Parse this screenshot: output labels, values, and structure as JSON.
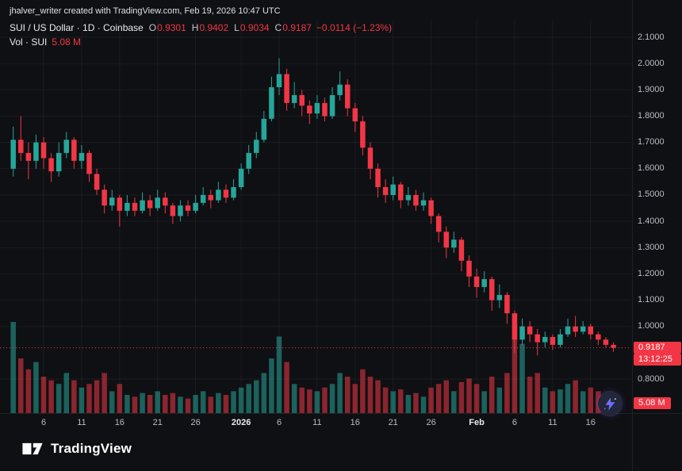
{
  "attribution": "jhalver_writer created with TradingView.com, Feb 19, 2026 10:47 UTC",
  "legend": {
    "title": "SUI / US Dollar · 1D · Coinbase",
    "o_label": "O",
    "o": "0.9301",
    "h_label": "H",
    "h": "0.9402",
    "l_label": "L",
    "l": "0.9034",
    "c_label": "C",
    "c": "0.9187",
    "change": "−0.0114 (−1.23%)",
    "volume_label": "Vol · SUI",
    "volume_value": "5.08 M"
  },
  "price_axis": {
    "labels": [
      "2.1000",
      "2.0000",
      "1.9000",
      "1.8000",
      "1.7000",
      "1.6000",
      "1.5000",
      "1.4000",
      "1.3000",
      "1.2000",
      "1.1000",
      "1.0000",
      "0.8000"
    ],
    "last_price_badge": "0.9187",
    "countdown_badge": "13:12:25",
    "volume_badge": "5.08 M"
  },
  "time_axis": [
    {
      "label": "6",
      "day": 4
    },
    {
      "label": "11",
      "day": 9
    },
    {
      "label": "16",
      "day": 14
    },
    {
      "label": "21",
      "day": 19
    },
    {
      "label": "26",
      "day": 24
    },
    {
      "label": "2026",
      "day": 30,
      "major": true
    },
    {
      "label": "6",
      "day": 35
    },
    {
      "label": "11",
      "day": 40
    },
    {
      "label": "16",
      "day": 45
    },
    {
      "label": "21",
      "day": 50
    },
    {
      "label": "26",
      "day": 55
    },
    {
      "label": "Feb",
      "day": 61,
      "major": true
    },
    {
      "label": "6",
      "day": 66
    },
    {
      "label": "11",
      "day": 71
    },
    {
      "label": "16",
      "day": 76
    }
  ],
  "footer": {
    "logo_text": "TradingView"
  },
  "colors": {
    "background": "#0f1013",
    "up": "#26a69a",
    "down": "#f23645",
    "up_volume": "rgba(38,166,154,0.55)",
    "down_volume": "rgba(242,54,69,0.55)",
    "badge": "#f23645",
    "axis_text": "#b8bcc5",
    "grid": "rgba(255,255,255,0.05)"
  },
  "chart_data": {
    "type": "candlestick",
    "title": "SUI / US Dollar",
    "exchange": "Coinbase",
    "interval": "1D",
    "ylim": [
      0.78,
      2.13
    ],
    "last_price": 0.9187,
    "last_change": -0.0114,
    "last_change_pct": -1.23,
    "volume_unit": "M",
    "last_volume": 5.08,
    "candles": [
      [
        1.6,
        1.76,
        1.57,
        1.71
      ],
      [
        1.71,
        1.8,
        1.63,
        1.66
      ],
      [
        1.66,
        1.7,
        1.56,
        1.63
      ],
      [
        1.63,
        1.73,
        1.6,
        1.7
      ],
      [
        1.7,
        1.72,
        1.6,
        1.64
      ],
      [
        1.64,
        1.66,
        1.55,
        1.59
      ],
      [
        1.59,
        1.7,
        1.57,
        1.66
      ],
      [
        1.66,
        1.74,
        1.64,
        1.71
      ],
      [
        1.71,
        1.72,
        1.6,
        1.63
      ],
      [
        1.63,
        1.69,
        1.6,
        1.66
      ],
      [
        1.66,
        1.67,
        1.55,
        1.58
      ],
      [
        1.58,
        1.6,
        1.5,
        1.52
      ],
      [
        1.52,
        1.54,
        1.43,
        1.46
      ],
      [
        1.46,
        1.52,
        1.44,
        1.49
      ],
      [
        1.49,
        1.5,
        1.38,
        1.44
      ],
      [
        1.44,
        1.5,
        1.42,
        1.47
      ],
      [
        1.47,
        1.49,
        1.42,
        1.44
      ],
      [
        1.44,
        1.51,
        1.43,
        1.48
      ],
      [
        1.48,
        1.5,
        1.42,
        1.45
      ],
      [
        1.45,
        1.52,
        1.44,
        1.49
      ],
      [
        1.49,
        1.51,
        1.43,
        1.46
      ],
      [
        1.46,
        1.47,
        1.39,
        1.42
      ],
      [
        1.42,
        1.48,
        1.4,
        1.46
      ],
      [
        1.46,
        1.48,
        1.42,
        1.44
      ],
      [
        1.44,
        1.5,
        1.43,
        1.47
      ],
      [
        1.47,
        1.53,
        1.46,
        1.5
      ],
      [
        1.5,
        1.52,
        1.45,
        1.48
      ],
      [
        1.48,
        1.55,
        1.47,
        1.52
      ],
      [
        1.52,
        1.54,
        1.47,
        1.49
      ],
      [
        1.49,
        1.56,
        1.48,
        1.53
      ],
      [
        1.53,
        1.62,
        1.52,
        1.6
      ],
      [
        1.6,
        1.69,
        1.58,
        1.66
      ],
      [
        1.66,
        1.74,
        1.64,
        1.71
      ],
      [
        1.71,
        1.82,
        1.7,
        1.79
      ],
      [
        1.79,
        1.95,
        1.78,
        1.91
      ],
      [
        1.91,
        2.02,
        1.88,
        1.96
      ],
      [
        1.96,
        1.98,
        1.82,
        1.85
      ],
      [
        1.85,
        1.93,
        1.83,
        1.88
      ],
      [
        1.88,
        1.9,
        1.8,
        1.84
      ],
      [
        1.84,
        1.86,
        1.77,
        1.81
      ],
      [
        1.81,
        1.88,
        1.79,
        1.85
      ],
      [
        1.85,
        1.87,
        1.78,
        1.8
      ],
      [
        1.8,
        1.91,
        1.79,
        1.88
      ],
      [
        1.88,
        1.97,
        1.86,
        1.92
      ],
      [
        1.92,
        1.94,
        1.8,
        1.83
      ],
      [
        1.83,
        1.85,
        1.74,
        1.78
      ],
      [
        1.78,
        1.8,
        1.65,
        1.68
      ],
      [
        1.68,
        1.7,
        1.56,
        1.6
      ],
      [
        1.6,
        1.62,
        1.49,
        1.53
      ],
      [
        1.53,
        1.56,
        1.47,
        1.5
      ],
      [
        1.5,
        1.57,
        1.48,
        1.54
      ],
      [
        1.54,
        1.55,
        1.45,
        1.48
      ],
      [
        1.48,
        1.53,
        1.46,
        1.5
      ],
      [
        1.5,
        1.52,
        1.44,
        1.46
      ],
      [
        1.46,
        1.51,
        1.44,
        1.48
      ],
      [
        1.48,
        1.49,
        1.39,
        1.42
      ],
      [
        1.42,
        1.43,
        1.32,
        1.36
      ],
      [
        1.36,
        1.38,
        1.26,
        1.3
      ],
      [
        1.3,
        1.36,
        1.28,
        1.33
      ],
      [
        1.33,
        1.34,
        1.21,
        1.25
      ],
      [
        1.25,
        1.27,
        1.15,
        1.19
      ],
      [
        1.19,
        1.22,
        1.11,
        1.15
      ],
      [
        1.15,
        1.21,
        1.13,
        1.18
      ],
      [
        1.18,
        1.19,
        1.06,
        1.1
      ],
      [
        1.1,
        1.16,
        1.07,
        1.12
      ],
      [
        1.12,
        1.13,
        1.01,
        1.05
      ],
      [
        1.05,
        1.06,
        0.9,
        0.95
      ],
      [
        0.95,
        1.03,
        0.93,
        1.0
      ],
      [
        1.0,
        1.02,
        0.94,
        0.97
      ],
      [
        0.97,
        0.99,
        0.89,
        0.94
      ],
      [
        0.94,
        0.98,
        0.92,
        0.96
      ],
      [
        0.96,
        0.97,
        0.91,
        0.93
      ],
      [
        0.93,
        0.99,
        0.92,
        0.97
      ],
      [
        0.97,
        1.03,
        0.96,
        1.0
      ],
      [
        1.0,
        1.04,
        0.96,
        0.98
      ],
      [
        0.98,
        1.02,
        0.97,
        1.0
      ],
      [
        1.0,
        1.01,
        0.95,
        0.97
      ],
      [
        0.97,
        0.98,
        0.93,
        0.95
      ],
      [
        0.95,
        0.96,
        0.92,
        0.9301
      ],
      [
        0.9301,
        0.9402,
        0.9034,
        0.9187
      ]
    ],
    "volumes": [
      50,
      30,
      24,
      28,
      20,
      18,
      16,
      22,
      18,
      14,
      16,
      18,
      22,
      12,
      16,
      10,
      9,
      11,
      10,
      12,
      10,
      11,
      9,
      8,
      10,
      12,
      9,
      11,
      10,
      12,
      14,
      16,
      18,
      22,
      30,
      42,
      28,
      16,
      14,
      13,
      12,
      14,
      16,
      22,
      20,
      16,
      24,
      20,
      18,
      14,
      12,
      13,
      10,
      11,
      9,
      14,
      16,
      18,
      12,
      17,
      19,
      16,
      12,
      20,
      14,
      22,
      48,
      38,
      20,
      22,
      14,
      12,
      13,
      16,
      18,
      12,
      14,
      12,
      10,
      5.08
    ]
  }
}
